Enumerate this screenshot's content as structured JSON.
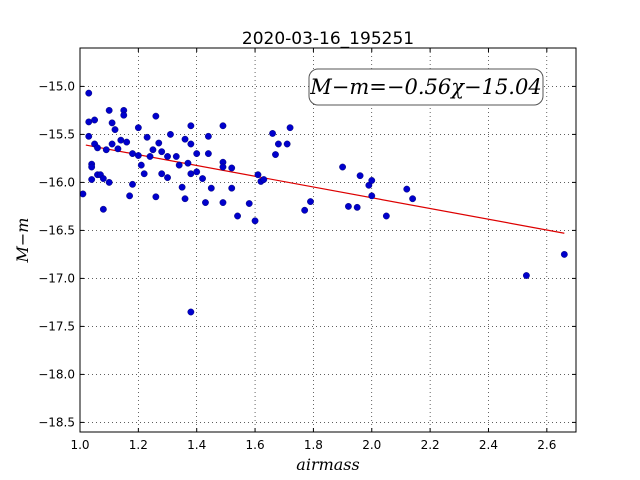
{
  "chart_data": {
    "type": "scatter",
    "title": "2020-03-16_195251",
    "xlabel": "airmass",
    "ylabel": "M−m",
    "annotation": "M−m=−0.56χ−15.04",
    "xlim": [
      1.0,
      2.7
    ],
    "ylim": [
      -18.6,
      -14.6
    ],
    "y_inverted_display": true,
    "xticks": [
      1.0,
      1.2,
      1.4,
      1.6,
      1.8,
      2.0,
      2.2,
      2.4,
      2.6
    ],
    "xtick_labels": [
      "1.0",
      "1.2",
      "1.4",
      "1.6",
      "1.8",
      "2.0",
      "2.2",
      "2.4",
      "2.6"
    ],
    "yticks": [
      -15.0,
      -15.5,
      -16.0,
      -16.5,
      -17.0,
      -17.5,
      -18.0,
      -18.5
    ],
    "ytick_labels": [
      "−15.0",
      "−15.5",
      "−16.0",
      "−16.5",
      "−17.0",
      "−17.5",
      "−18.0",
      "−18.5"
    ],
    "grid": true,
    "points_color": "#0000cc",
    "fit_color": "#dd0000",
    "fit_line": {
      "slope": -0.56,
      "intercept": -15.04,
      "x_range": [
        1.02,
        2.66
      ]
    },
    "points": [
      [
        1.01,
        -16.12
      ],
      [
        1.03,
        -15.07
      ],
      [
        1.03,
        -15.37
      ],
      [
        1.03,
        -15.52
      ],
      [
        1.04,
        -15.81
      ],
      [
        1.04,
        -15.84
      ],
      [
        1.04,
        -15.97
      ],
      [
        1.05,
        -15.35
      ],
      [
        1.05,
        -15.6
      ],
      [
        1.06,
        -15.64
      ],
      [
        1.06,
        -15.92
      ],
      [
        1.07,
        -15.92
      ],
      [
        1.08,
        -16.28
      ],
      [
        1.08,
        -15.96
      ],
      [
        1.09,
        -15.66
      ],
      [
        1.1,
        -15.25
      ],
      [
        1.1,
        -16.0
      ],
      [
        1.11,
        -15.6
      ],
      [
        1.11,
        -15.38
      ],
      [
        1.12,
        -15.45
      ],
      [
        1.13,
        -15.65
      ],
      [
        1.14,
        -15.56
      ],
      [
        1.15,
        -15.25
      ],
      [
        1.15,
        -15.3
      ],
      [
        1.16,
        -15.58
      ],
      [
        1.17,
        -16.14
      ],
      [
        1.18,
        -16.02
      ],
      [
        1.18,
        -15.7
      ],
      [
        1.2,
        -15.72
      ],
      [
        1.2,
        -15.43
      ],
      [
        1.21,
        -15.82
      ],
      [
        1.22,
        -15.91
      ],
      [
        1.23,
        -15.53
      ],
      [
        1.24,
        -15.73
      ],
      [
        1.25,
        -15.66
      ],
      [
        1.26,
        -16.15
      ],
      [
        1.26,
        -15.31
      ],
      [
        1.27,
        -15.59
      ],
      [
        1.28,
        -15.68
      ],
      [
        1.28,
        -15.91
      ],
      [
        1.3,
        -15.73
      ],
      [
        1.3,
        -15.95
      ],
      [
        1.31,
        -15.5
      ],
      [
        1.33,
        -15.73
      ],
      [
        1.34,
        -15.82
      ],
      [
        1.35,
        -16.05
      ],
      [
        1.36,
        -16.17
      ],
      [
        1.36,
        -15.55
      ],
      [
        1.37,
        -15.8
      ],
      [
        1.38,
        -15.41
      ],
      [
        1.38,
        -15.6
      ],
      [
        1.38,
        -15.91
      ],
      [
        1.38,
        -17.35
      ],
      [
        1.4,
        -15.7
      ],
      [
        1.4,
        -15.89
      ],
      [
        1.42,
        -15.96
      ],
      [
        1.43,
        -16.21
      ],
      [
        1.44,
        -15.52
      ],
      [
        1.44,
        -15.7
      ],
      [
        1.45,
        -16.06
      ],
      [
        1.49,
        -15.41
      ],
      [
        1.49,
        -15.79
      ],
      [
        1.49,
        -15.84
      ],
      [
        1.49,
        -16.21
      ],
      [
        1.52,
        -15.85
      ],
      [
        1.52,
        -16.06
      ],
      [
        1.54,
        -16.35
      ],
      [
        1.58,
        -16.22
      ],
      [
        1.6,
        -16.4
      ],
      [
        1.61,
        -15.92
      ],
      [
        1.62,
        -15.99
      ],
      [
        1.63,
        -15.97
      ],
      [
        1.66,
        -15.49
      ],
      [
        1.67,
        -15.71
      ],
      [
        1.68,
        -15.6
      ],
      [
        1.71,
        -15.6
      ],
      [
        1.72,
        -15.43
      ],
      [
        1.77,
        -16.29
      ],
      [
        1.79,
        -16.2
      ],
      [
        1.9,
        -15.84
      ],
      [
        1.92,
        -16.25
      ],
      [
        1.95,
        -16.26
      ],
      [
        1.96,
        -15.93
      ],
      [
        1.99,
        -16.03
      ],
      [
        2.0,
        -15.98
      ],
      [
        2.0,
        -16.14
      ],
      [
        2.05,
        -16.35
      ],
      [
        2.12,
        -16.07
      ],
      [
        2.14,
        -16.17
      ],
      [
        2.53,
        -16.97
      ],
      [
        2.66,
        -16.75
      ]
    ]
  }
}
